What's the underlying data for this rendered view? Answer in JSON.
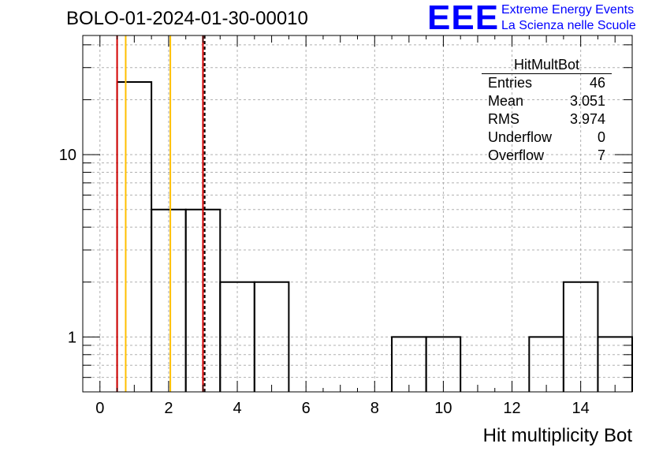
{
  "header": {
    "title": "BOLO-01-2024-01-30-00010",
    "logo_text": "EEE",
    "logo_line1": "Extreme Energy Events",
    "logo_line2": "La Scienza nelle Scuole"
  },
  "stats_box": {
    "title": "HitMultBot",
    "rows": [
      {
        "label": "Entries",
        "value": "46"
      },
      {
        "label": "Mean",
        "value": "3.051"
      },
      {
        "label": "RMS",
        "value": "3.974"
      },
      {
        "label": "Underflow",
        "value": "0"
      },
      {
        "label": "Overflow",
        "value": "7"
      }
    ]
  },
  "chart_data": {
    "type": "histogram",
    "title": "BOLO-01-2024-01-30-00010",
    "xlabel": "Hit multiplicity Bot",
    "ylabel": "",
    "xlim": [
      -0.5,
      15.5
    ],
    "ylim": [
      0.5,
      45
    ],
    "y_scale": "log",
    "x_ticks": [
      0,
      2,
      4,
      6,
      8,
      10,
      12,
      14
    ],
    "y_ticks": [
      1,
      10
    ],
    "grid": true,
    "bins": [
      {
        "x": 0,
        "count": 0
      },
      {
        "x": 1,
        "count": 25
      },
      {
        "x": 2,
        "count": 5
      },
      {
        "x": 3,
        "count": 5
      },
      {
        "x": 4,
        "count": 2
      },
      {
        "x": 5,
        "count": 2
      },
      {
        "x": 6,
        "count": 0
      },
      {
        "x": 7,
        "count": 0
      },
      {
        "x": 8,
        "count": 0
      },
      {
        "x": 9,
        "count": 1
      },
      {
        "x": 10,
        "count": 1
      },
      {
        "x": 11,
        "count": 0
      },
      {
        "x": 12,
        "count": 0
      },
      {
        "x": 13,
        "count": 1
      },
      {
        "x": 14,
        "count": 2
      },
      {
        "x": 15,
        "count": 1
      }
    ],
    "vertical_lines": [
      {
        "x": 0.5,
        "color": "#d40000",
        "style": "solid"
      },
      {
        "x": 0.75,
        "color": "#ffc000",
        "style": "solid"
      },
      {
        "x": 2.05,
        "color": "#ffc000",
        "style": "solid"
      },
      {
        "x": 3.0,
        "color": "#d40000",
        "style": "solid"
      },
      {
        "x": 3.05,
        "color": "#000000",
        "style": "dashed"
      }
    ]
  }
}
